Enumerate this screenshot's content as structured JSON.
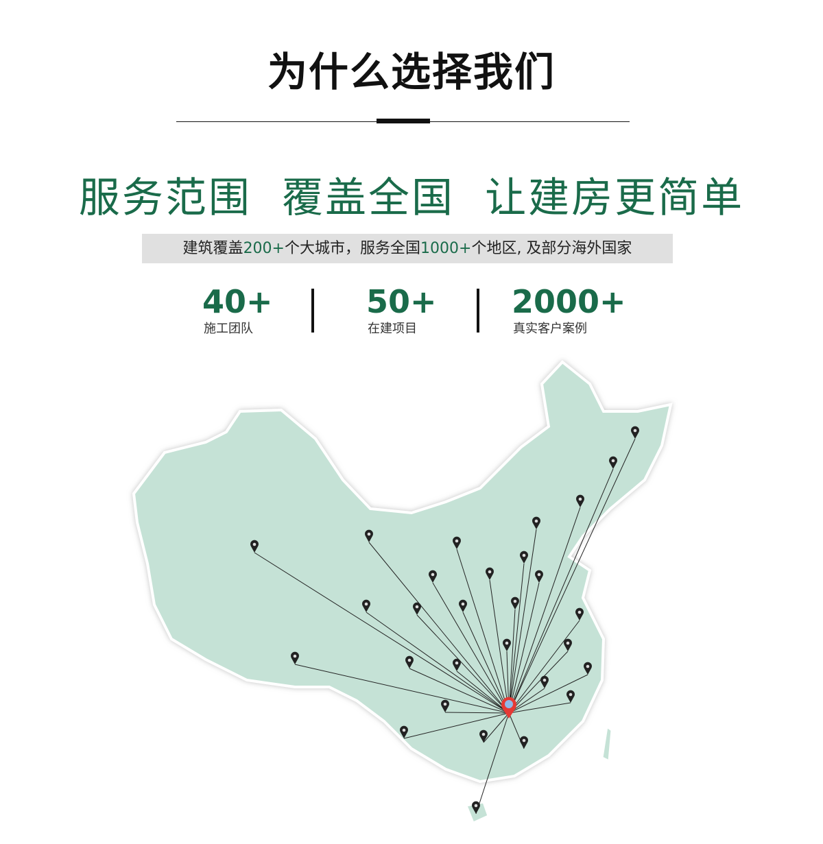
{
  "header": {
    "title": "为什么选择我们"
  },
  "slogan": "服务范围  覆盖全国  让建房更简单",
  "subtitle": {
    "p1": "建筑覆盖",
    "n1": "200+",
    "p2": "个大城市，服务全国",
    "n2": "1000+",
    "p3": "个地区, 及部分海外国家"
  },
  "stats": [
    {
      "value": "40+",
      "label": "施工团队"
    },
    {
      "value": "50+",
      "label": "在建项目"
    },
    {
      "value": "2000+",
      "label": "真实客户案例"
    }
  ],
  "colors": {
    "accent": "#1a6b4a",
    "map_fill": "#c5e2d6",
    "hub": "#e53935"
  },
  "map": {
    "pin_count": 29,
    "hub_icon": "location-pin-icon",
    "pin_icon": "map-pin-icon"
  }
}
